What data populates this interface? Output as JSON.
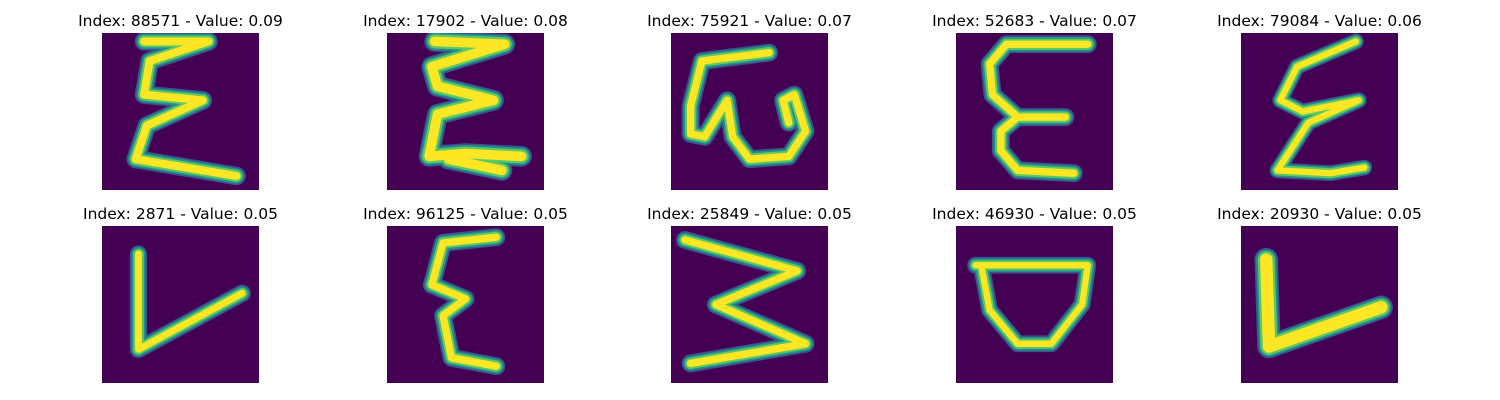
{
  "colors": {
    "background": "#440154",
    "stroke_core": "#fde725",
    "stroke_edge": "#21918c",
    "stroke_halo": "#3b528b",
    "title_text": "#000000"
  },
  "images": [
    {
      "title": "Index: 88571 - Value: 0.09",
      "depicts": "handwritten-E-zigzag"
    },
    {
      "title": "Index: 17902 - Value: 0.08",
      "depicts": "handwritten-E-bold"
    },
    {
      "title": "Index: 75921 - Value: 0.07",
      "depicts": "handwritten-E-rotated"
    },
    {
      "title": "Index: 52683 - Value: 0.07",
      "depicts": "handwritten-E-epsilon"
    },
    {
      "title": "Index: 79084 - Value: 0.06",
      "depicts": "handwritten-E-thin-zigzag"
    },
    {
      "title": "Index: 2871 - Value: 0.05",
      "depicts": "handwritten-L-v"
    },
    {
      "title": "Index: 96125 - Value: 0.05",
      "depicts": "handwritten-E-epsilon"
    },
    {
      "title": "Index: 25849 - Value: 0.05",
      "depicts": "handwritten-E-rotated"
    },
    {
      "title": "Index: 46930 - Value: 0.05",
      "depicts": "handwritten-D-cup"
    },
    {
      "title": "Index: 20930 - Value: 0.05",
      "depicts": "handwritten-L-bold"
    }
  ]
}
